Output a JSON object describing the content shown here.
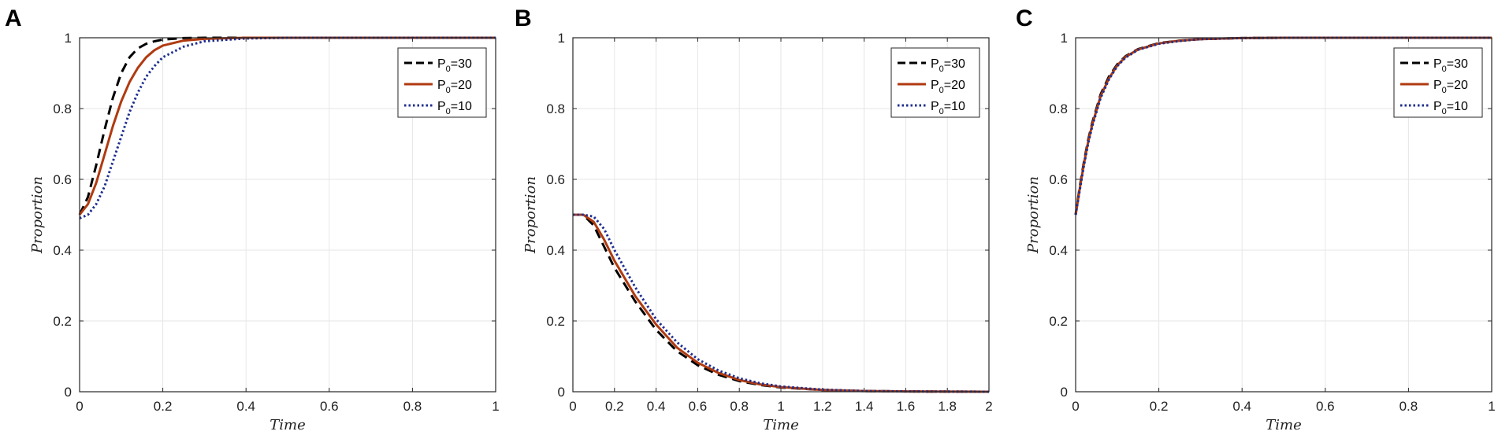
{
  "chart_data": [
    {
      "panel": "A",
      "type": "line",
      "xlabel": "Time",
      "ylabel": "Proportion",
      "xlim": [
        0,
        1
      ],
      "ylim": [
        0,
        1
      ],
      "xticks": [
        "0",
        "0.2",
        "0.4",
        "0.6",
        "0.8",
        "1"
      ],
      "yticks": [
        "0",
        "0.2",
        "0.4",
        "0.6",
        "0.8",
        "1"
      ],
      "grid": true,
      "legend": "top-right",
      "series": [
        {
          "name": "P0=30",
          "label_main": "P",
          "label_sub": "0",
          "label_rest": "=30",
          "style": "dashed",
          "color": "#000000",
          "x": [
            0,
            0.02,
            0.04,
            0.06,
            0.08,
            0.1,
            0.12,
            0.14,
            0.16,
            0.18,
            0.2,
            0.25,
            0.3,
            0.4,
            0.5,
            1.0
          ],
          "y": [
            0.5,
            0.55,
            0.64,
            0.74,
            0.83,
            0.9,
            0.945,
            0.97,
            0.983,
            0.99,
            0.995,
            0.999,
            1.0,
            1.0,
            1.0,
            1.0
          ]
        },
        {
          "name": "P0=20",
          "label_main": "P",
          "label_sub": "0",
          "label_rest": "=20",
          "style": "solid",
          "color": "#b03a10",
          "x": [
            0,
            0.02,
            0.04,
            0.06,
            0.08,
            0.1,
            0.12,
            0.14,
            0.16,
            0.18,
            0.2,
            0.25,
            0.3,
            0.4,
            0.5,
            1.0
          ],
          "y": [
            0.5,
            0.53,
            0.59,
            0.67,
            0.75,
            0.82,
            0.875,
            0.915,
            0.945,
            0.965,
            0.978,
            0.992,
            0.997,
            1.0,
            1.0,
            1.0
          ]
        },
        {
          "name": "P0=10",
          "label_main": "P",
          "label_sub": "0",
          "label_rest": "=10",
          "style": "dotted",
          "color": "#1f2f8f",
          "x": [
            0,
            0.02,
            0.04,
            0.06,
            0.08,
            0.1,
            0.12,
            0.14,
            0.16,
            0.18,
            0.2,
            0.25,
            0.3,
            0.4,
            0.5,
            1.0
          ],
          "y": [
            0.49,
            0.5,
            0.53,
            0.58,
            0.65,
            0.72,
            0.79,
            0.845,
            0.89,
            0.92,
            0.945,
            0.975,
            0.99,
            0.998,
            1.0,
            1.0
          ]
        }
      ]
    },
    {
      "panel": "B",
      "type": "line",
      "xlabel": "Time",
      "ylabel": "Proportion",
      "xlim": [
        0,
        2
      ],
      "ylim": [
        0,
        1
      ],
      "xticks": [
        "0",
        "0.2",
        "0.4",
        "0.6",
        "0.8",
        "1",
        "1.2",
        "1.4",
        "1.6",
        "1.8",
        "2"
      ],
      "yticks": [
        "0",
        "0.2",
        "0.4",
        "0.6",
        "0.8",
        "1"
      ],
      "grid": true,
      "legend": "top-right",
      "series": [
        {
          "name": "P0=30",
          "label_main": "P",
          "label_sub": "0",
          "label_rest": "=30",
          "style": "dashed",
          "color": "#000000",
          "x": [
            0,
            0.05,
            0.1,
            0.15,
            0.2,
            0.3,
            0.4,
            0.5,
            0.6,
            0.7,
            0.8,
            0.9,
            1.0,
            1.2,
            1.4,
            1.6,
            2.0
          ],
          "y": [
            0.5,
            0.5,
            0.47,
            0.41,
            0.35,
            0.255,
            0.175,
            0.115,
            0.075,
            0.048,
            0.03,
            0.019,
            0.012,
            0.005,
            0.002,
            0.001,
            0.0
          ]
        },
        {
          "name": "P0=20",
          "label_main": "P",
          "label_sub": "0",
          "label_rest": "=20",
          "style": "solid",
          "color": "#b03a10",
          "x": [
            0,
            0.05,
            0.1,
            0.15,
            0.2,
            0.3,
            0.4,
            0.5,
            0.6,
            0.7,
            0.8,
            0.9,
            1.0,
            1.2,
            1.4,
            1.6,
            2.0
          ],
          "y": [
            0.5,
            0.5,
            0.48,
            0.43,
            0.37,
            0.27,
            0.19,
            0.125,
            0.082,
            0.053,
            0.033,
            0.021,
            0.013,
            0.005,
            0.002,
            0.001,
            0.0
          ]
        },
        {
          "name": "P0=10",
          "label_main": "P",
          "label_sub": "0",
          "label_rest": "=10",
          "style": "dotted",
          "color": "#1f2f8f",
          "x": [
            0,
            0.05,
            0.1,
            0.15,
            0.2,
            0.3,
            0.4,
            0.5,
            0.6,
            0.7,
            0.8,
            0.9,
            1.0,
            1.2,
            1.4,
            1.6,
            2.0
          ],
          "y": [
            0.5,
            0.5,
            0.495,
            0.46,
            0.4,
            0.295,
            0.205,
            0.14,
            0.092,
            0.06,
            0.038,
            0.024,
            0.015,
            0.006,
            0.002,
            0.001,
            0.0
          ]
        }
      ]
    },
    {
      "panel": "C",
      "type": "line",
      "xlabel": "Time",
      "ylabel": "Proportion",
      "xlim": [
        0,
        1
      ],
      "ylim": [
        0,
        1
      ],
      "xticks": [
        "0",
        "0.2",
        "0.4",
        "0.6",
        "0.8",
        "1"
      ],
      "yticks": [
        "0",
        "0.2",
        "0.4",
        "0.6",
        "0.8",
        "1"
      ],
      "grid": true,
      "legend": "top-right",
      "series": [
        {
          "name": "P0=30",
          "label_main": "P",
          "label_sub": "0",
          "label_rest": "=30",
          "style": "dashed",
          "color": "#000000",
          "x": [
            0,
            0.01,
            0.02,
            0.03,
            0.04,
            0.05,
            0.06,
            0.08,
            0.1,
            0.12,
            0.15,
            0.2,
            0.25,
            0.3,
            0.4,
            0.5,
            1.0
          ],
          "y": [
            0.5,
            0.58,
            0.65,
            0.71,
            0.76,
            0.8,
            0.84,
            0.89,
            0.925,
            0.948,
            0.968,
            0.985,
            0.992,
            0.996,
            0.999,
            1.0,
            1.0
          ]
        },
        {
          "name": "P0=20",
          "label_main": "P",
          "label_sub": "0",
          "label_rest": "=20",
          "style": "solid",
          "color": "#b03a10",
          "x": [
            0,
            0.01,
            0.02,
            0.03,
            0.04,
            0.05,
            0.06,
            0.08,
            0.1,
            0.12,
            0.15,
            0.2,
            0.25,
            0.3,
            0.4,
            0.5,
            1.0
          ],
          "y": [
            0.5,
            0.575,
            0.645,
            0.705,
            0.755,
            0.795,
            0.835,
            0.885,
            0.922,
            0.946,
            0.967,
            0.984,
            0.992,
            0.996,
            0.999,
            1.0,
            1.0
          ]
        },
        {
          "name": "P0=10",
          "label_main": "P",
          "label_sub": "0",
          "label_rest": "=10",
          "style": "dotted",
          "color": "#1f2f8f",
          "x": [
            0,
            0.01,
            0.02,
            0.03,
            0.04,
            0.05,
            0.06,
            0.08,
            0.1,
            0.12,
            0.15,
            0.2,
            0.25,
            0.3,
            0.4,
            0.5,
            1.0
          ],
          "y": [
            0.5,
            0.57,
            0.64,
            0.7,
            0.75,
            0.79,
            0.83,
            0.882,
            0.92,
            0.944,
            0.966,
            0.983,
            0.991,
            0.996,
            0.999,
            1.0,
            1.0
          ]
        }
      ]
    }
  ]
}
